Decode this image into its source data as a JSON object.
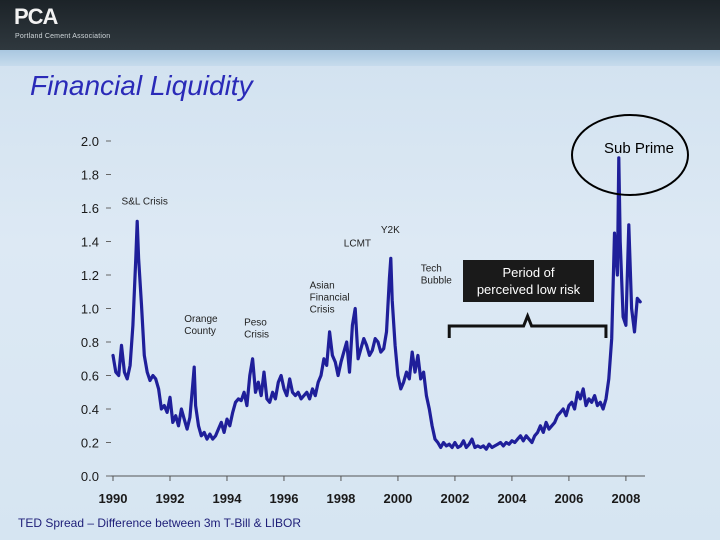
{
  "header": {
    "logo_text": "PCA",
    "logo_subtitle": "Portland Cement Association"
  },
  "slide": {
    "title": "Financial Liquidity",
    "caption": "TED Spread – Difference between 3m T-Bill & LIBOR"
  },
  "colors": {
    "series": "#1f1f9a",
    "title": "#2a2ab8",
    "header_bg": "#2a3238",
    "callout_bg": "#1a1a1a"
  },
  "chart_data": {
    "type": "line",
    "title": "",
    "xlabel": "",
    "ylabel": "",
    "xlim": [
      1990,
      2008.6
    ],
    "ylim": [
      0,
      2.0
    ],
    "x_ticks": [
      "1990",
      "1992",
      "1994",
      "1996",
      "1998",
      "2000",
      "2002",
      "2004",
      "2006",
      "2008"
    ],
    "y_ticks": [
      "0.0",
      "0.2",
      "0.4",
      "0.6",
      "0.8",
      "1.0",
      "1.2",
      "1.4",
      "1.6",
      "1.8",
      "2.0"
    ],
    "grid": false,
    "series": [
      {
        "name": "",
        "points": [
          [
            1990.0,
            0.72
          ],
          [
            1990.1,
            0.62
          ],
          [
            1990.2,
            0.6
          ],
          [
            1990.3,
            0.78
          ],
          [
            1990.4,
            0.62
          ],
          [
            1990.5,
            0.58
          ],
          [
            1990.6,
            0.66
          ],
          [
            1990.7,
            0.9
          ],
          [
            1990.8,
            1.3
          ],
          [
            1990.85,
            1.52
          ],
          [
            1990.9,
            1.3
          ],
          [
            1991.0,
            1.02
          ],
          [
            1991.1,
            0.72
          ],
          [
            1991.2,
            0.62
          ],
          [
            1991.3,
            0.57
          ],
          [
            1991.4,
            0.6
          ],
          [
            1991.5,
            0.58
          ],
          [
            1991.6,
            0.52
          ],
          [
            1991.7,
            0.4
          ],
          [
            1991.8,
            0.42
          ],
          [
            1991.9,
            0.38
          ],
          [
            1992.0,
            0.47
          ],
          [
            1992.1,
            0.32
          ],
          [
            1992.2,
            0.36
          ],
          [
            1992.3,
            0.3
          ],
          [
            1992.4,
            0.4
          ],
          [
            1992.5,
            0.34
          ],
          [
            1992.6,
            0.28
          ],
          [
            1992.7,
            0.35
          ],
          [
            1992.8,
            0.55
          ],
          [
            1992.85,
            0.65
          ],
          [
            1992.9,
            0.42
          ],
          [
            1993.0,
            0.3
          ],
          [
            1993.1,
            0.24
          ],
          [
            1993.2,
            0.26
          ],
          [
            1993.3,
            0.22
          ],
          [
            1993.4,
            0.25
          ],
          [
            1993.5,
            0.22
          ],
          [
            1993.6,
            0.24
          ],
          [
            1993.7,
            0.28
          ],
          [
            1993.8,
            0.32
          ],
          [
            1993.9,
            0.26
          ],
          [
            1994.0,
            0.34
          ],
          [
            1994.1,
            0.3
          ],
          [
            1994.2,
            0.38
          ],
          [
            1994.3,
            0.44
          ],
          [
            1994.4,
            0.46
          ],
          [
            1994.5,
            0.45
          ],
          [
            1994.6,
            0.5
          ],
          [
            1994.7,
            0.42
          ],
          [
            1994.8,
            0.6
          ],
          [
            1994.9,
            0.7
          ],
          [
            1995.0,
            0.5
          ],
          [
            1995.1,
            0.56
          ],
          [
            1995.2,
            0.48
          ],
          [
            1995.3,
            0.62
          ],
          [
            1995.4,
            0.46
          ],
          [
            1995.5,
            0.44
          ],
          [
            1995.6,
            0.5
          ],
          [
            1995.7,
            0.46
          ],
          [
            1995.8,
            0.56
          ],
          [
            1995.9,
            0.6
          ],
          [
            1996.0,
            0.52
          ],
          [
            1996.1,
            0.48
          ],
          [
            1996.2,
            0.58
          ],
          [
            1996.3,
            0.5
          ],
          [
            1996.4,
            0.48
          ],
          [
            1996.5,
            0.5
          ],
          [
            1996.6,
            0.46
          ],
          [
            1996.7,
            0.48
          ],
          [
            1996.8,
            0.5
          ],
          [
            1996.9,
            0.46
          ],
          [
            1997.0,
            0.52
          ],
          [
            1997.1,
            0.48
          ],
          [
            1997.2,
            0.56
          ],
          [
            1997.3,
            0.6
          ],
          [
            1997.4,
            0.7
          ],
          [
            1997.5,
            0.66
          ],
          [
            1997.6,
            0.86
          ],
          [
            1997.7,
            0.72
          ],
          [
            1997.8,
            0.68
          ],
          [
            1997.9,
            0.6
          ],
          [
            1998.0,
            0.68
          ],
          [
            1998.1,
            0.74
          ],
          [
            1998.2,
            0.8
          ],
          [
            1998.3,
            0.62
          ],
          [
            1998.4,
            0.9
          ],
          [
            1998.5,
            1.0
          ],
          [
            1998.6,
            0.7
          ],
          [
            1998.7,
            0.76
          ],
          [
            1998.8,
            0.82
          ],
          [
            1998.9,
            0.78
          ],
          [
            1999.0,
            0.72
          ],
          [
            1999.1,
            0.75
          ],
          [
            1999.2,
            0.82
          ],
          [
            1999.3,
            0.8
          ],
          [
            1999.4,
            0.74
          ],
          [
            1999.5,
            0.76
          ],
          [
            1999.6,
            0.86
          ],
          [
            1999.7,
            1.18
          ],
          [
            1999.75,
            1.3
          ],
          [
            1999.8,
            1.05
          ],
          [
            1999.9,
            0.78
          ],
          [
            2000.0,
            0.6
          ],
          [
            2000.1,
            0.52
          ],
          [
            2000.2,
            0.56
          ],
          [
            2000.3,
            0.62
          ],
          [
            2000.4,
            0.58
          ],
          [
            2000.5,
            0.74
          ],
          [
            2000.6,
            0.62
          ],
          [
            2000.7,
            0.72
          ],
          [
            2000.8,
            0.58
          ],
          [
            2000.9,
            0.62
          ],
          [
            2001.0,
            0.48
          ],
          [
            2001.1,
            0.4
          ],
          [
            2001.2,
            0.3
          ],
          [
            2001.3,
            0.22
          ],
          [
            2001.4,
            0.2
          ],
          [
            2001.5,
            0.17
          ],
          [
            2001.6,
            0.2
          ],
          [
            2001.7,
            0.18
          ],
          [
            2001.8,
            0.19
          ],
          [
            2001.9,
            0.17
          ],
          [
            2002.0,
            0.2
          ],
          [
            2002.1,
            0.17
          ],
          [
            2002.2,
            0.18
          ],
          [
            2002.3,
            0.21
          ],
          [
            2002.4,
            0.17
          ],
          [
            2002.5,
            0.19
          ],
          [
            2002.6,
            0.22
          ],
          [
            2002.7,
            0.17
          ],
          [
            2002.8,
            0.18
          ],
          [
            2002.9,
            0.17
          ],
          [
            2003.0,
            0.18
          ],
          [
            2003.1,
            0.16
          ],
          [
            2003.2,
            0.19
          ],
          [
            2003.3,
            0.17
          ],
          [
            2003.4,
            0.18
          ],
          [
            2003.5,
            0.19
          ],
          [
            2003.6,
            0.2
          ],
          [
            2003.7,
            0.18
          ],
          [
            2003.8,
            0.2
          ],
          [
            2003.9,
            0.19
          ],
          [
            2004.0,
            0.21
          ],
          [
            2004.1,
            0.2
          ],
          [
            2004.2,
            0.22
          ],
          [
            2004.3,
            0.24
          ],
          [
            2004.4,
            0.21
          ],
          [
            2004.5,
            0.24
          ],
          [
            2004.6,
            0.22
          ],
          [
            2004.7,
            0.2
          ],
          [
            2004.8,
            0.24
          ],
          [
            2004.9,
            0.26
          ],
          [
            2005.0,
            0.3
          ],
          [
            2005.1,
            0.26
          ],
          [
            2005.2,
            0.32
          ],
          [
            2005.3,
            0.28
          ],
          [
            2005.4,
            0.3
          ],
          [
            2005.5,
            0.32
          ],
          [
            2005.6,
            0.36
          ],
          [
            2005.7,
            0.38
          ],
          [
            2005.8,
            0.4
          ],
          [
            2005.9,
            0.36
          ],
          [
            2006.0,
            0.42
          ],
          [
            2006.1,
            0.44
          ],
          [
            2006.2,
            0.4
          ],
          [
            2006.3,
            0.5
          ],
          [
            2006.4,
            0.46
          ],
          [
            2006.5,
            0.52
          ],
          [
            2006.6,
            0.42
          ],
          [
            2006.7,
            0.46
          ],
          [
            2006.8,
            0.44
          ],
          [
            2006.9,
            0.48
          ],
          [
            2007.0,
            0.42
          ],
          [
            2007.1,
            0.44
          ],
          [
            2007.2,
            0.4
          ],
          [
            2007.3,
            0.46
          ],
          [
            2007.4,
            0.58
          ],
          [
            2007.5,
            0.82
          ],
          [
            2007.6,
            1.45
          ],
          [
            2007.7,
            1.2
          ],
          [
            2007.75,
            1.9
          ],
          [
            2007.8,
            1.4
          ],
          [
            2007.9,
            0.95
          ],
          [
            2008.0,
            0.9
          ],
          [
            2008.1,
            1.5
          ],
          [
            2008.2,
            1.0
          ],
          [
            2008.3,
            0.86
          ],
          [
            2008.4,
            1.06
          ],
          [
            2008.5,
            1.04
          ]
        ]
      }
    ],
    "annotations": [
      {
        "label": "S&L Crisis",
        "x": 1990.3,
        "y": 1.62
      },
      {
        "label": "Orange\nCounty",
        "x": 1992.5,
        "y": 0.92
      },
      {
        "label": "Peso\nCrisis",
        "x": 1994.6,
        "y": 0.9
      },
      {
        "label": "Asian\nFinancial\nCrisis",
        "x": 1996.9,
        "y": 1.12
      },
      {
        "label": "LCMT",
        "x": 1998.1,
        "y": 1.37
      },
      {
        "label": "Y2K",
        "x": 1999.4,
        "y": 1.45
      },
      {
        "label": "Tech\nBubble",
        "x": 2000.8,
        "y": 1.22
      }
    ],
    "callout": {
      "label": "Period of\nperceived low risk",
      "from_x": 2001.8,
      "to_x": 2007.3
    },
    "highlight": {
      "label": "Sub Prime"
    }
  }
}
